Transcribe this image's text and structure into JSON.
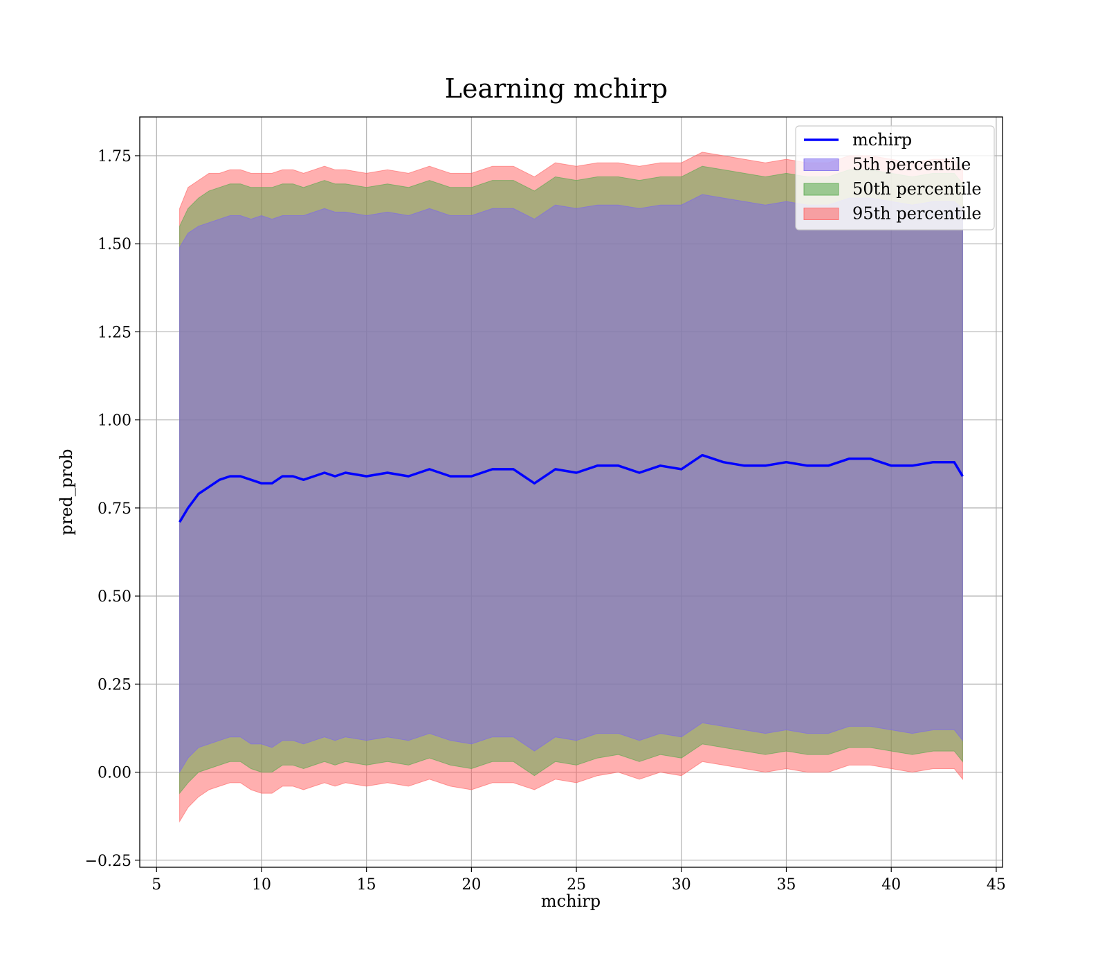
{
  "chart_data": {
    "type": "area",
    "title": "Learning mchirp",
    "xlabel": "mchirp",
    "ylabel": "pred_prob",
    "xlim": [
      4.2,
      45.3
    ],
    "ylim": [
      -0.27,
      1.86
    ],
    "xticks": [
      5,
      10,
      15,
      20,
      25,
      30,
      35,
      40,
      45
    ],
    "yticks": [
      -0.25,
      0.0,
      0.25,
      0.5,
      0.75,
      1.0,
      1.25,
      1.5,
      1.75
    ],
    "ytick_labels": [
      "−0.25",
      "0.00",
      "0.25",
      "0.50",
      "0.75",
      "1.00",
      "1.25",
      "1.50",
      "1.75"
    ],
    "grid": true,
    "legend": "top-right",
    "x": [
      6.1,
      6.5,
      7,
      7.5,
      8,
      8.5,
      9,
      9.5,
      10,
      10.5,
      11,
      11.5,
      12,
      12.5,
      13,
      13.5,
      14,
      15,
      16,
      17,
      18,
      19,
      20,
      21,
      22,
      23,
      24,
      25,
      26,
      27,
      28,
      29,
      30,
      31,
      32,
      33,
      34,
      35,
      36,
      37,
      38,
      39,
      40,
      41,
      42,
      43,
      43.4
    ],
    "series": [
      {
        "name": "mchirp",
        "kind": "line",
        "color": "#0000ff",
        "values": [
          0.71,
          0.75,
          0.79,
          0.81,
          0.83,
          0.84,
          0.84,
          0.83,
          0.82,
          0.82,
          0.84,
          0.84,
          0.83,
          0.84,
          0.85,
          0.84,
          0.85,
          0.84,
          0.85,
          0.84,
          0.86,
          0.84,
          0.84,
          0.86,
          0.86,
          0.82,
          0.86,
          0.85,
          0.87,
          0.87,
          0.85,
          0.87,
          0.86,
          0.9,
          0.88,
          0.87,
          0.87,
          0.88,
          0.87,
          0.87,
          0.89,
          0.89,
          0.87,
          0.87,
          0.88,
          0.88,
          0.84
        ]
      },
      {
        "name": "5th percentile",
        "kind": "band",
        "color": "#7b68ee",
        "upper": [
          1.49,
          1.53,
          1.55,
          1.56,
          1.57,
          1.58,
          1.58,
          1.57,
          1.58,
          1.57,
          1.58,
          1.58,
          1.58,
          1.59,
          1.6,
          1.59,
          1.59,
          1.58,
          1.59,
          1.58,
          1.6,
          1.58,
          1.58,
          1.6,
          1.6,
          1.57,
          1.61,
          1.6,
          1.61,
          1.61,
          1.6,
          1.61,
          1.61,
          1.64,
          1.63,
          1.62,
          1.61,
          1.62,
          1.61,
          1.61,
          1.63,
          1.63,
          1.62,
          1.61,
          1.62,
          1.62,
          1.6
        ],
        "lower": [
          0.0,
          0.04,
          0.07,
          0.08,
          0.09,
          0.1,
          0.1,
          0.08,
          0.08,
          0.07,
          0.09,
          0.09,
          0.08,
          0.09,
          0.1,
          0.09,
          0.1,
          0.09,
          0.1,
          0.09,
          0.11,
          0.09,
          0.08,
          0.1,
          0.1,
          0.06,
          0.1,
          0.09,
          0.11,
          0.11,
          0.09,
          0.11,
          0.1,
          0.14,
          0.13,
          0.12,
          0.11,
          0.12,
          0.11,
          0.11,
          0.13,
          0.13,
          0.12,
          0.11,
          0.12,
          0.12,
          0.09
        ]
      },
      {
        "name": "50th percentile",
        "kind": "band",
        "color": "#55a84b",
        "upper": [
          1.55,
          1.6,
          1.63,
          1.65,
          1.66,
          1.67,
          1.67,
          1.66,
          1.66,
          1.66,
          1.67,
          1.67,
          1.66,
          1.67,
          1.68,
          1.67,
          1.67,
          1.66,
          1.67,
          1.66,
          1.68,
          1.66,
          1.66,
          1.68,
          1.68,
          1.65,
          1.69,
          1.68,
          1.69,
          1.69,
          1.68,
          1.69,
          1.69,
          1.72,
          1.71,
          1.7,
          1.69,
          1.7,
          1.69,
          1.69,
          1.71,
          1.71,
          1.7,
          1.69,
          1.7,
          1.7,
          1.67
        ],
        "lower": [
          -0.06,
          -0.03,
          0.0,
          0.01,
          0.02,
          0.03,
          0.03,
          0.01,
          0.0,
          0.0,
          0.02,
          0.02,
          0.01,
          0.02,
          0.03,
          0.02,
          0.03,
          0.02,
          0.03,
          0.02,
          0.04,
          0.02,
          0.01,
          0.03,
          0.03,
          -0.01,
          0.03,
          0.02,
          0.04,
          0.05,
          0.03,
          0.05,
          0.04,
          0.08,
          0.07,
          0.06,
          0.05,
          0.06,
          0.05,
          0.05,
          0.07,
          0.07,
          0.06,
          0.05,
          0.06,
          0.06,
          0.03
        ]
      },
      {
        "name": "95th percentile",
        "kind": "band",
        "color": "#ff6060",
        "upper": [
          1.6,
          1.66,
          1.68,
          1.7,
          1.7,
          1.71,
          1.71,
          1.7,
          1.7,
          1.7,
          1.71,
          1.71,
          1.7,
          1.71,
          1.72,
          1.71,
          1.71,
          1.7,
          1.71,
          1.7,
          1.72,
          1.7,
          1.7,
          1.72,
          1.72,
          1.69,
          1.73,
          1.72,
          1.73,
          1.73,
          1.72,
          1.73,
          1.73,
          1.76,
          1.75,
          1.74,
          1.73,
          1.74,
          1.73,
          1.73,
          1.75,
          1.75,
          1.74,
          1.73,
          1.74,
          1.74,
          1.71
        ],
        "lower": [
          -0.14,
          -0.1,
          -0.07,
          -0.05,
          -0.04,
          -0.03,
          -0.03,
          -0.05,
          -0.06,
          -0.06,
          -0.04,
          -0.04,
          -0.05,
          -0.04,
          -0.03,
          -0.04,
          -0.03,
          -0.04,
          -0.03,
          -0.04,
          -0.02,
          -0.04,
          -0.05,
          -0.03,
          -0.03,
          -0.05,
          -0.02,
          -0.03,
          -0.01,
          0.0,
          -0.02,
          0.0,
          -0.01,
          0.03,
          0.02,
          0.01,
          0.0,
          0.01,
          0.0,
          0.0,
          0.02,
          0.02,
          0.01,
          0.0,
          0.01,
          0.01,
          -0.02
        ]
      }
    ]
  }
}
